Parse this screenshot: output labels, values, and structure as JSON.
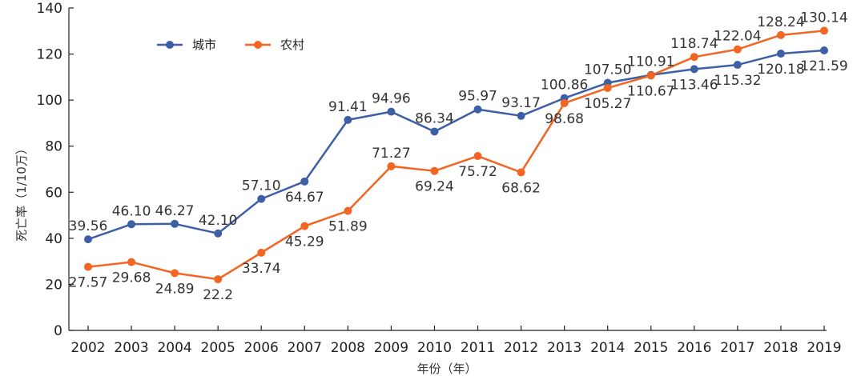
{
  "chart_data": {
    "type": "line",
    "title": "",
    "xlabel": "年份（年）",
    "ylabel": "死亡率（1/10万）",
    "ylim": [
      0,
      140
    ],
    "yticks": [
      "0",
      "20",
      "40",
      "60",
      "80",
      "100",
      "120",
      "140"
    ],
    "grid": false,
    "legend_position": "top-left",
    "x": [
      "2002",
      "2003",
      "2004",
      "2005",
      "2006",
      "2007",
      "2008",
      "2009",
      "2010",
      "2011",
      "2012",
      "2013",
      "2014",
      "2015",
      "2016",
      "2017",
      "2018",
      "2019"
    ],
    "series": [
      {
        "name": "城市",
        "color": "#3d5fa6",
        "values": [
          39.56,
          46.1,
          46.27,
          42.1,
          57.1,
          64.67,
          91.41,
          94.96,
          86.34,
          95.97,
          93.17,
          100.86,
          107.5,
          110.91,
          113.46,
          115.32,
          120.18,
          121.59
        ],
        "labels": [
          "39.56",
          "46.10",
          "46.27",
          "42.10",
          "57.10",
          "64.67",
          "91.41",
          "94.96",
          "86.34",
          "95.97",
          "93.17",
          "100.86",
          "107.50",
          "110.91",
          "113.46",
          "115.32",
          "120.18",
          "121.59"
        ]
      },
      {
        "name": "农村",
        "color": "#f26522",
        "values": [
          27.57,
          29.68,
          24.89,
          22.2,
          33.74,
          45.29,
          51.89,
          71.27,
          69.24,
          75.72,
          68.62,
          98.68,
          105.27,
          110.67,
          118.74,
          122.04,
          128.24,
          130.14
        ],
        "labels": [
          "27.57",
          "29.68",
          "24.89",
          "22.2",
          "33.74",
          "45.29",
          "51.89",
          "71.27",
          "69.24",
          "75.72",
          "68.62",
          "98.68",
          "105.27",
          "110.67",
          "118.74",
          "122.04",
          "128.24",
          "130.14"
        ]
      }
    ]
  }
}
